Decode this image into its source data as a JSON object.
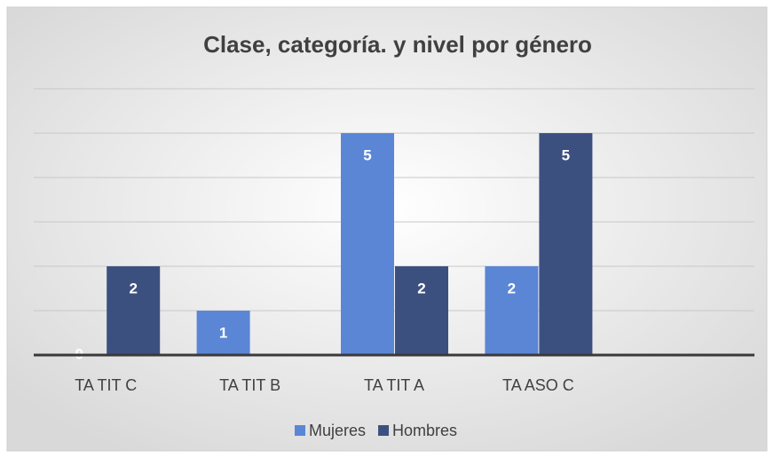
{
  "chart_data": {
    "type": "bar",
    "title": "Clase, categoría. y nivel por género",
    "categories": [
      "TA TIT C",
      "TA TIT B",
      "TA TIT A",
      "TA ASO C",
      null
    ],
    "series": [
      {
        "name": "Mujeres",
        "color": "#5b86d6",
        "values": [
          0,
          1,
          5,
          2,
          null
        ]
      },
      {
        "name": "Hombres",
        "color": "#3c5080",
        "values": [
          2,
          null,
          2,
          5,
          null
        ]
      }
    ],
    "ylim": [
      0,
      6
    ],
    "yticks": [
      0,
      1,
      2,
      3,
      4,
      5,
      6
    ],
    "grid": true,
    "legend": "bottom"
  }
}
